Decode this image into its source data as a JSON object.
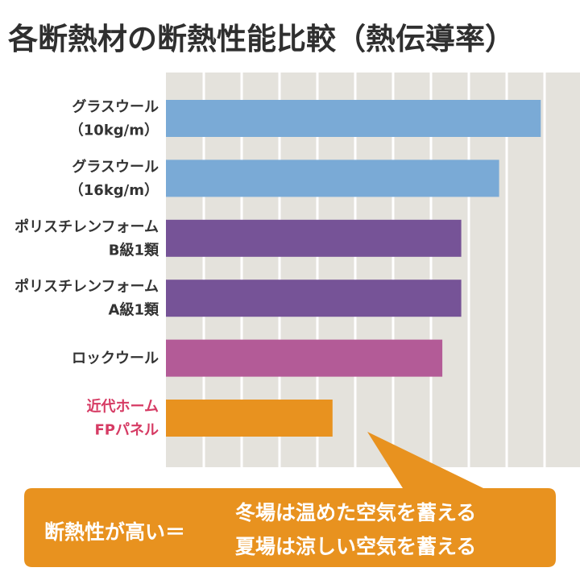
{
  "title": "各断熱材の断熱性能比較（熱伝導率）",
  "colors": {
    "plot_background": "#e4e2dc",
    "grid": "#ffffff",
    "glass_wool": "#7aaad6",
    "polystyrene": "#765397",
    "rock_wool": "#b35b97",
    "fp_panel": "#e8921f",
    "fp_label": "#d63b64",
    "label": "#333333",
    "callout": "#e8921f",
    "callout_text": "#ffffff"
  },
  "chart_data": {
    "type": "bar",
    "orientation": "horizontal",
    "title": "各断熱材の断熱性能比較（熱伝導率）",
    "xlabel": "",
    "ylabel": "",
    "xlim": [
      0,
      10
    ],
    "grid": true,
    "categories": [
      [
        "グラスウール",
        "（10kg/m）"
      ],
      [
        "グラスウール",
        "（16kg/m）"
      ],
      [
        "ポリスチレンフォーム",
        "B級1類"
      ],
      [
        "ポリスチレンフォーム",
        "A級1類"
      ],
      [
        "ロックウール"
      ],
      [
        "近代ホーム",
        "FPパネル"
      ]
    ],
    "values": [
      9.9,
      8.8,
      7.8,
      7.8,
      7.3,
      4.4
    ],
    "bar_colors": [
      "#7aaad6",
      "#7aaad6",
      "#765397",
      "#765397",
      "#b35b97",
      "#e8921f"
    ],
    "label_colors": [
      "#333333",
      "#333333",
      "#333333",
      "#333333",
      "#333333",
      "#d63b64"
    ]
  },
  "callout": {
    "left": "断熱性が高い＝",
    "line1": "冬場は温めた空気を蓄える",
    "line2": "夏場は涼しい空気を蓄える"
  }
}
